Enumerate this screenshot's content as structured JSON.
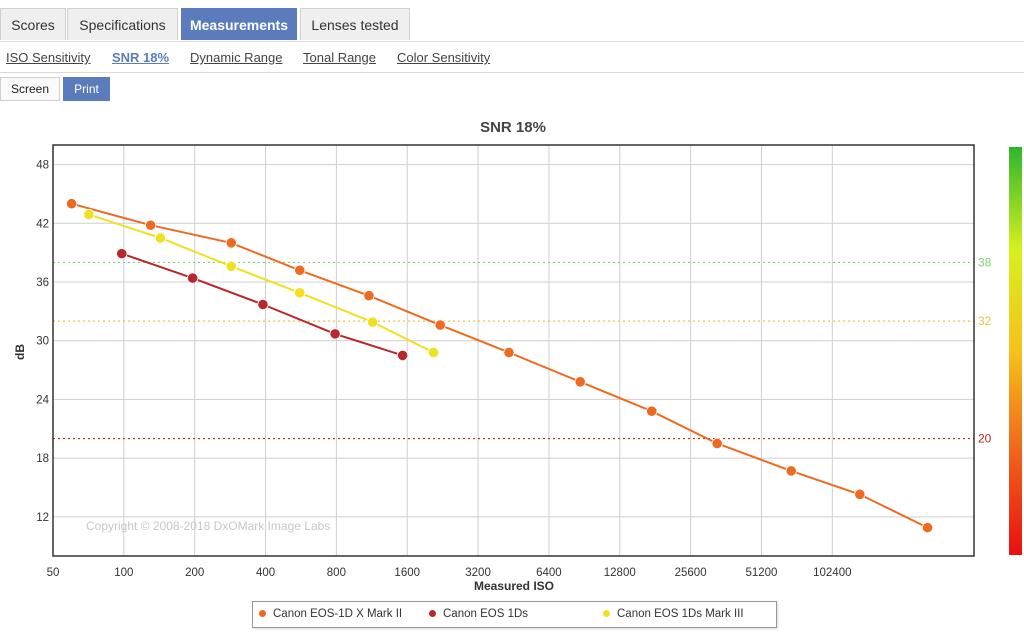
{
  "tabs": [
    "Scores",
    "Specifications",
    "Measurements",
    "Lenses tested"
  ],
  "subnav": [
    "ISO Sensitivity",
    "SNR 18%",
    "Dynamic Range",
    "Tonal Range",
    "Color Sensitivity"
  ],
  "modes": [
    "Screen",
    "Print"
  ],
  "copyright": "Copyright © 2008-2018 DxOMark Image Labs",
  "chart_data": {
    "type": "line",
    "title": "SNR 18%",
    "xlabel": "Measured ISO",
    "ylabel": "dB",
    "x_scale": "log2",
    "xlim": [
      50,
      409600
    ],
    "ylim": [
      8,
      50
    ],
    "xticks": [
      "50",
      "100",
      "200",
      "400",
      "800",
      "1600",
      "3200",
      "6400",
      "12800",
      "25600",
      "51200",
      "102400"
    ],
    "yticks": [
      12,
      18,
      24,
      30,
      36,
      42,
      48
    ],
    "grid": true,
    "series": [
      {
        "name": "Canon EOS-1D X Mark II",
        "color": "#ee6a20",
        "points": [
          [
            60,
            44.0
          ],
          [
            130,
            41.8
          ],
          [
            286,
            40.0
          ],
          [
            559,
            37.2
          ],
          [
            1100,
            34.6
          ],
          [
            2210,
            31.6
          ],
          [
            4330,
            28.8
          ],
          [
            8690,
            25.8
          ],
          [
            17500,
            22.8
          ],
          [
            33200,
            19.5
          ],
          [
            68500,
            16.7
          ],
          [
            134000,
            14.3
          ],
          [
            260000,
            10.9
          ]
        ]
      },
      {
        "name": "Canon EOS 1Ds",
        "color": "#b8272b",
        "points": [
          [
            98,
            38.9
          ],
          [
            196,
            36.4
          ],
          [
            390,
            33.7
          ],
          [
            790,
            30.7
          ],
          [
            1530,
            28.5
          ]
        ]
      },
      {
        "name": "Canon EOS 1Ds Mark III",
        "color": "#f0e020",
        "points": [
          [
            71,
            42.9
          ],
          [
            143,
            40.5
          ],
          [
            286,
            37.6
          ],
          [
            559,
            34.9
          ],
          [
            1140,
            31.9
          ],
          [
            2070,
            28.8
          ]
        ]
      }
    ],
    "reference_lines": [
      {
        "value": 38,
        "label": "38",
        "color": "#7ed36a"
      },
      {
        "value": 32,
        "label": "32",
        "color": "#e8c33e"
      },
      {
        "value": 20,
        "label": "20",
        "color": "#b22e1f"
      }
    ],
    "legend_position": "bottom-center",
    "colorbar": {
      "stops": [
        "#2db52d",
        "#d6f01e",
        "#f6c21c",
        "#f0631c",
        "#e81010"
      ]
    }
  }
}
